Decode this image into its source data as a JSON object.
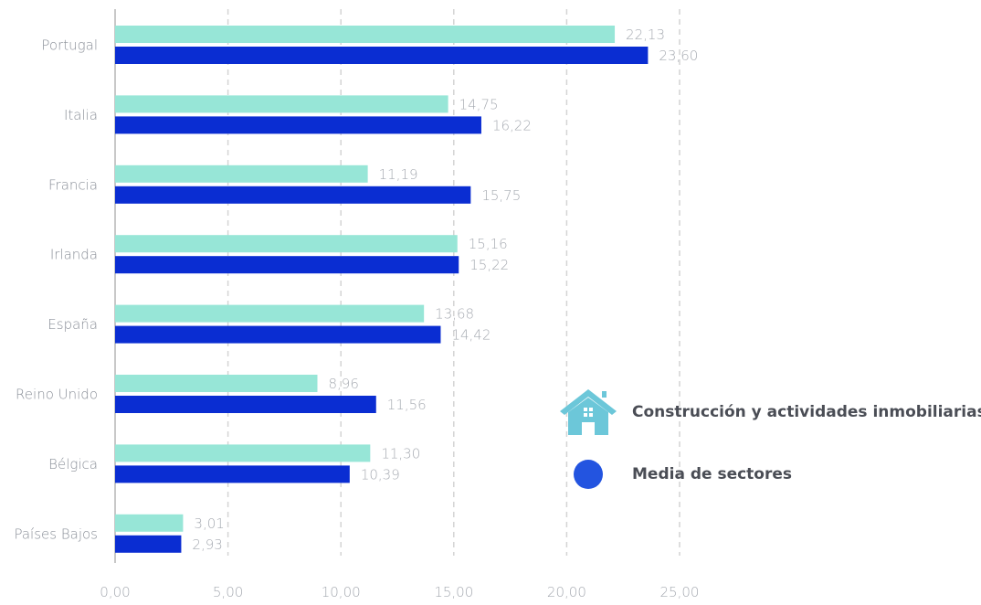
{
  "colors": {
    "construction": "#97e6d7",
    "average": "#0a2dd2",
    "average_legend": "#2354e0",
    "grid": "#d4d4d4",
    "axis": "#c8c8c8",
    "house_icon": "#6cc7d9"
  },
  "legend": {
    "construction_label": "Construcción y actividades inmobiliarias",
    "construction_icon": "house-icon",
    "average_label": "Media de sectores",
    "average_icon": "circle-icon"
  },
  "chart_data": {
    "type": "bar",
    "orientation": "horizontal",
    "categories": [
      "Portugal",
      "Italia",
      "Francia",
      "Irlanda",
      "España",
      "Reino Unido",
      "Bélgica",
      "Países Bajos"
    ],
    "series": [
      {
        "name": "Construcción y actividades inmobiliarias",
        "values": [
          22.13,
          14.75,
          11.19,
          15.16,
          13.68,
          8.96,
          11.3,
          3.01
        ],
        "labels": [
          "22,13",
          "14,75",
          "11,19",
          "15,16",
          "13,68",
          "8,96",
          "11,30",
          "3,01"
        ]
      },
      {
        "name": "Media de sectores",
        "values": [
          23.6,
          16.22,
          15.75,
          15.22,
          14.42,
          11.56,
          10.39,
          2.93
        ],
        "labels": [
          "23,60",
          "16,22",
          "15,75",
          "15,22",
          "14,42",
          "11,56",
          "10,39",
          "2,93"
        ]
      }
    ],
    "xlim": [
      0,
      25
    ],
    "xticks": [
      0,
      5,
      10,
      15,
      20,
      25
    ],
    "xtick_labels": [
      "0,00",
      "5,00",
      "10,00",
      "15,00",
      "20,00",
      "25,00"
    ],
    "grid": "vertical dashed",
    "legend_position": "right"
  }
}
